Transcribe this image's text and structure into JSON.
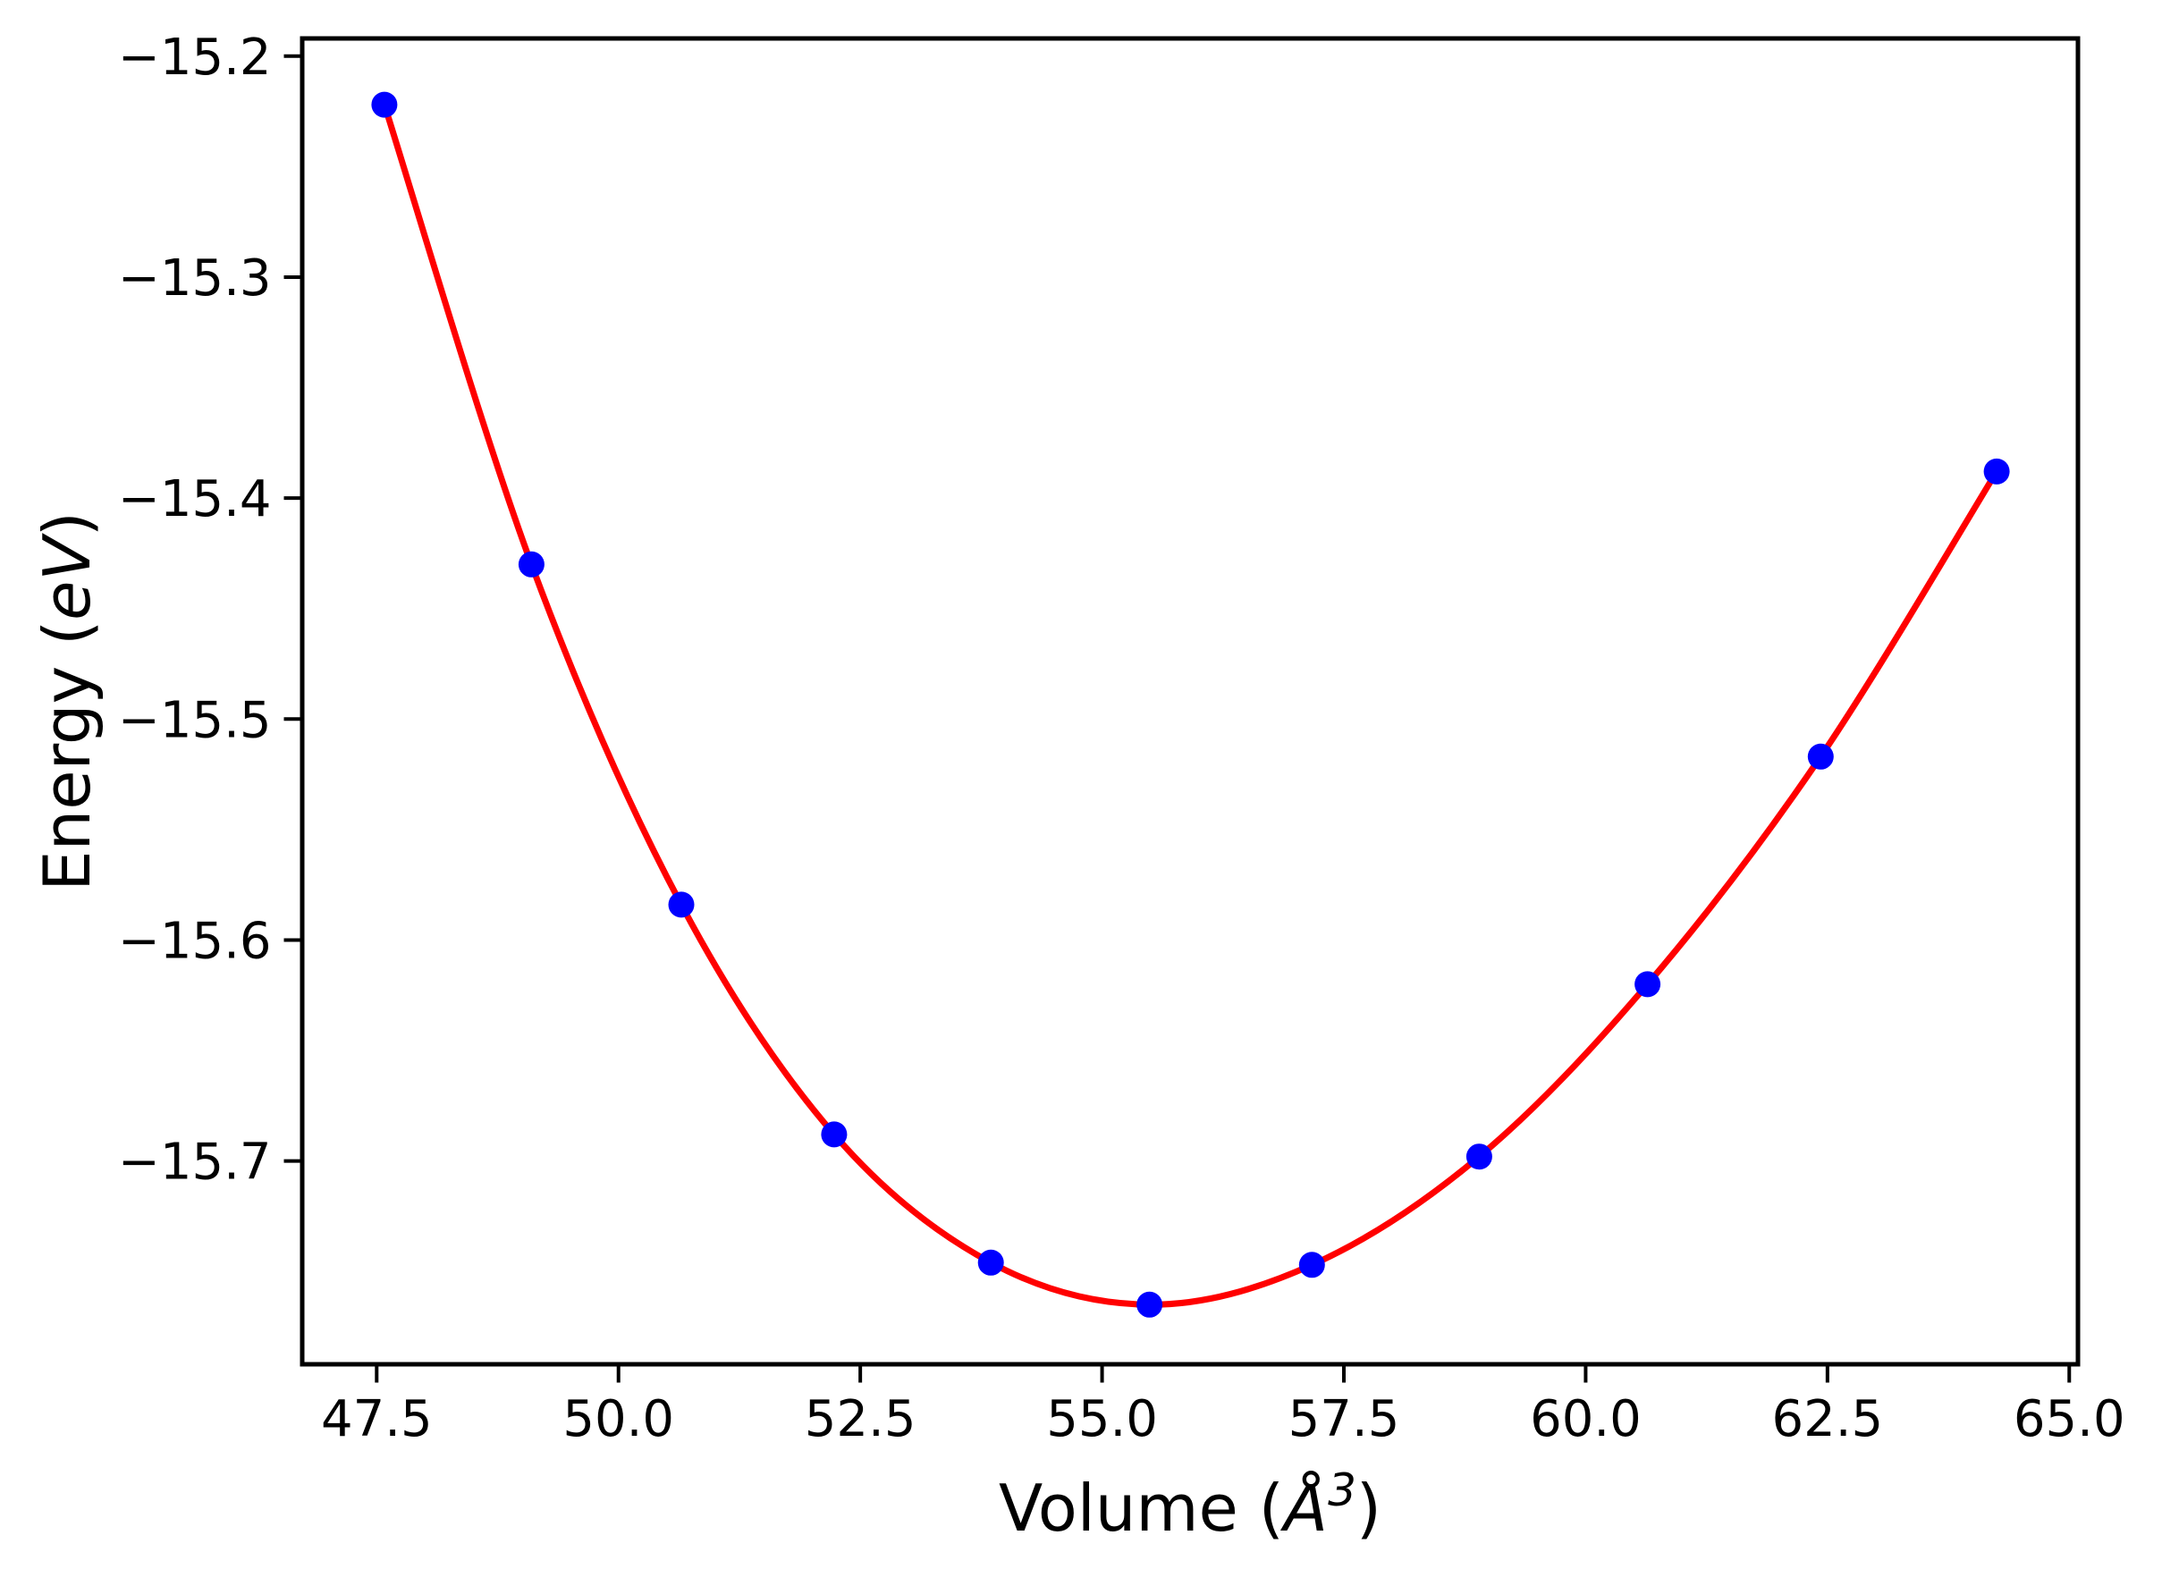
{
  "figure": {
    "background": "#ffffff"
  },
  "chart_data": {
    "type": "scatter",
    "title": "",
    "xlabel": "Volume (Å³)",
    "xlabel_parts": {
      "prefix": "Volume (",
      "italic_symbol": "Å",
      "superscript": "3",
      "suffix": ")"
    },
    "ylabel": "Energy (eV)",
    "ylabel_parts": {
      "prefix": "Energy (",
      "italic_symbol": "eV",
      "suffix": ")"
    },
    "x": [
      47.58,
      49.1,
      50.65,
      52.23,
      53.85,
      55.49,
      57.17,
      58.9,
      60.64,
      62.43,
      64.25
    ],
    "y": [
      -15.222,
      -15.43,
      -15.584,
      -15.688,
      -15.746,
      -15.765,
      -15.747,
      -15.698,
      -15.62,
      -15.517,
      -15.388
    ],
    "xlim": [
      46.73,
      65.09
    ],
    "ylim": [
      -15.792,
      -15.192
    ],
    "xticks": [
      47.5,
      50.0,
      52.5,
      55.0,
      57.5,
      60.0,
      62.5,
      65.0
    ],
    "xtick_labels": [
      "47.5",
      "50.0",
      "52.5",
      "55.0",
      "57.5",
      "60.0",
      "62.5",
      "65.0"
    ],
    "yticks": [
      -15.2,
      -15.3,
      -15.4,
      -15.5,
      -15.6,
      -15.7
    ],
    "ytick_labels": [
      "−15.2",
      "−15.3",
      "−15.4",
      "−15.5",
      "−15.6",
      "−15.7"
    ],
    "grid": false,
    "legend": false,
    "series": [
      {
        "name": "eos-fit-curve",
        "type": "line",
        "color": "#ff0000",
        "linewidth": 7
      },
      {
        "name": "calculated-points",
        "type": "scatter",
        "color": "#0000ff",
        "marker": "circle",
        "marker_radius": 14.5
      }
    ],
    "colors": {
      "curve": "#ff0000",
      "points": "#0000ff",
      "axes": "#000000",
      "text": "#000000"
    }
  }
}
